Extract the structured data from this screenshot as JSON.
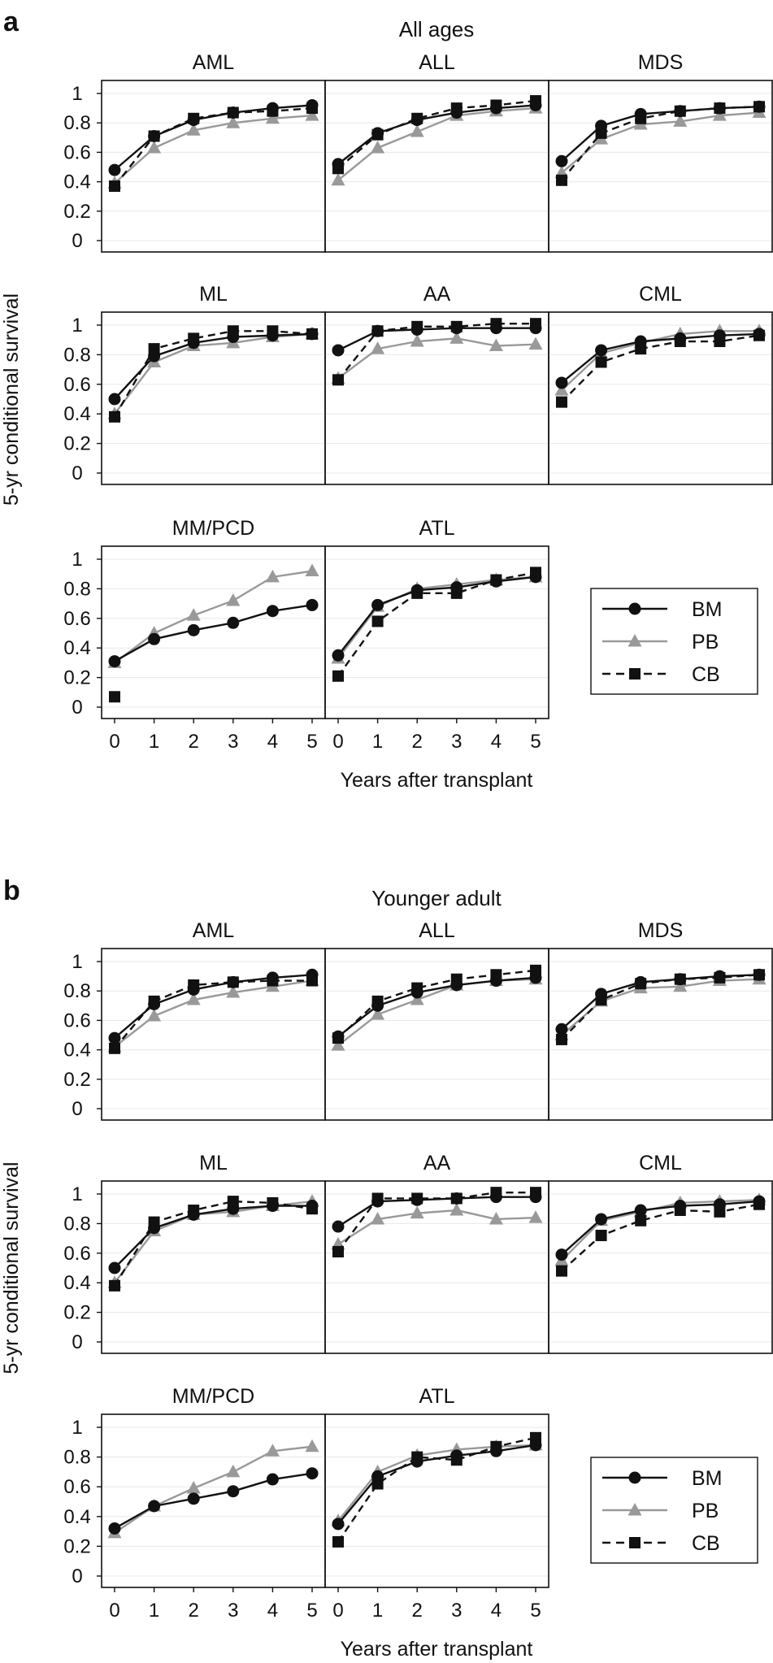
{
  "chart_data": [
    {
      "type": "line",
      "panel_label": "a",
      "title": "All ages",
      "xlabel": "Years after transplant",
      "ylabel": "5-yr conditional survival",
      "x": [
        0,
        1,
        2,
        3,
        4,
        5
      ],
      "x_ticks": [
        "0",
        "1",
        "2",
        "3",
        "4",
        "5"
      ],
      "y_ticks": [
        "0",
        "0.2",
        "0.4",
        "0.6",
        "0.8",
        "1"
      ],
      "ylim": [
        0,
        1
      ],
      "grid": true,
      "legend": {
        "position": "bottom-right",
        "entries": [
          {
            "name": "BM",
            "color": "#111111",
            "marker": "circle",
            "dash": "solid"
          },
          {
            "name": "PB",
            "color": "#999999",
            "marker": "triangle",
            "dash": "solid"
          },
          {
            "name": "CB",
            "color": "#111111",
            "marker": "square",
            "dash": "dashed"
          }
        ]
      },
      "subplots": [
        {
          "title": "AML",
          "series": [
            {
              "name": "BM",
              "values": [
                0.48,
                0.71,
                0.82,
                0.87,
                0.9,
                0.92
              ]
            },
            {
              "name": "PB",
              "values": [
                0.39,
                0.63,
                0.75,
                0.8,
                0.83,
                0.85
              ]
            },
            {
              "name": "CB",
              "values": [
                0.37,
                0.71,
                0.83,
                0.87,
                0.88,
                0.9
              ]
            }
          ]
        },
        {
          "title": "ALL",
          "series": [
            {
              "name": "BM",
              "values": [
                0.52,
                0.73,
                0.82,
                0.87,
                0.9,
                0.92
              ]
            },
            {
              "name": "PB",
              "values": [
                0.41,
                0.63,
                0.74,
                0.85,
                0.88,
                0.9
              ]
            },
            {
              "name": "CB",
              "values": [
                0.49,
                0.72,
                0.83,
                0.9,
                0.92,
                0.95
              ]
            }
          ]
        },
        {
          "title": "MDS",
          "series": [
            {
              "name": "BM",
              "values": [
                0.54,
                0.78,
                0.86,
                0.88,
                0.9,
                0.91
              ]
            },
            {
              "name": "PB",
              "values": [
                0.46,
                0.69,
                0.79,
                0.81,
                0.85,
                0.87
              ]
            },
            {
              "name": "CB",
              "values": [
                0.41,
                0.73,
                0.83,
                0.88,
                0.9,
                0.91
              ]
            }
          ]
        },
        {
          "title": "ML",
          "series": [
            {
              "name": "BM",
              "values": [
                0.5,
                0.79,
                0.88,
                0.92,
                0.93,
                0.94
              ]
            },
            {
              "name": "PB",
              "values": [
                0.4,
                0.75,
                0.86,
                0.88,
                0.92,
                0.94
              ]
            },
            {
              "name": "CB",
              "values": [
                0.38,
                0.84,
                0.91,
                0.96,
                0.96,
                0.94
              ]
            }
          ]
        },
        {
          "title": "AA",
          "series": [
            {
              "name": "BM",
              "values": [
                0.83,
                0.96,
                0.97,
                0.98,
                0.98,
                0.98
              ]
            },
            {
              "name": "PB",
              "values": [
                0.64,
                0.84,
                0.89,
                0.91,
                0.86,
                0.87
              ]
            },
            {
              "name": "CB",
              "values": [
                0.63,
                0.96,
                0.99,
                0.99,
                1.01,
                1.01
              ]
            }
          ]
        },
        {
          "title": "CML",
          "series": [
            {
              "name": "BM",
              "values": [
                0.61,
                0.83,
                0.89,
                0.91,
                0.93,
                0.94
              ]
            },
            {
              "name": "PB",
              "values": [
                0.56,
                0.81,
                0.88,
                0.94,
                0.96,
                0.96
              ]
            },
            {
              "name": "CB",
              "values": [
                0.48,
                0.75,
                0.84,
                0.89,
                0.89,
                0.93
              ]
            }
          ]
        },
        {
          "title": "MM/PCD",
          "series": [
            {
              "name": "BM",
              "values": [
                0.31,
                0.46,
                0.52,
                0.57,
                0.65,
                0.69
              ]
            },
            {
              "name": "PB",
              "values": [
                0.3,
                0.5,
                0.62,
                0.72,
                0.88,
                0.92
              ]
            },
            {
              "name": "CB",
              "values": [
                0.07,
                null,
                null,
                null,
                null,
                null
              ]
            }
          ]
        },
        {
          "title": "ATL",
          "series": [
            {
              "name": "BM",
              "values": [
                0.35,
                0.69,
                0.79,
                0.81,
                0.85,
                0.88
              ]
            },
            {
              "name": "PB",
              "values": [
                0.33,
                0.68,
                0.8,
                0.83,
                0.86,
                0.88
              ]
            },
            {
              "name": "CB",
              "values": [
                0.21,
                0.58,
                0.77,
                0.77,
                0.86,
                0.91
              ]
            }
          ]
        }
      ]
    },
    {
      "type": "line",
      "panel_label": "b",
      "title": "Younger adult",
      "xlabel": "Years after transplant",
      "ylabel": "5-yr conditional survival",
      "x": [
        0,
        1,
        2,
        3,
        4,
        5
      ],
      "x_ticks": [
        "0",
        "1",
        "2",
        "3",
        "4",
        "5"
      ],
      "y_ticks": [
        "0",
        "0.2",
        "0.4",
        "0.6",
        "0.8",
        "1"
      ],
      "ylim": [
        0,
        1
      ],
      "grid": true,
      "legend": {
        "position": "bottom-right",
        "entries": [
          {
            "name": "BM",
            "color": "#111111",
            "marker": "circle",
            "dash": "solid"
          },
          {
            "name": "PB",
            "color": "#999999",
            "marker": "triangle",
            "dash": "solid"
          },
          {
            "name": "CB",
            "color": "#111111",
            "marker": "square",
            "dash": "dashed"
          }
        ]
      },
      "subplots": [
        {
          "title": "AML",
          "series": [
            {
              "name": "BM",
              "values": [
                0.48,
                0.71,
                0.81,
                0.86,
                0.89,
                0.91
              ]
            },
            {
              "name": "PB",
              "values": [
                0.42,
                0.63,
                0.74,
                0.79,
                0.83,
                0.87
              ]
            },
            {
              "name": "CB",
              "values": [
                0.41,
                0.73,
                0.84,
                0.86,
                0.87,
                0.87
              ]
            }
          ]
        },
        {
          "title": "ALL",
          "series": [
            {
              "name": "BM",
              "values": [
                0.49,
                0.7,
                0.79,
                0.84,
                0.87,
                0.89
              ]
            },
            {
              "name": "PB",
              "values": [
                0.43,
                0.64,
                0.74,
                0.84,
                0.87,
                0.88
              ]
            },
            {
              "name": "CB",
              "values": [
                0.48,
                0.73,
                0.82,
                0.88,
                0.91,
                0.94
              ]
            }
          ]
        },
        {
          "title": "MDS",
          "series": [
            {
              "name": "BM",
              "values": [
                0.54,
                0.78,
                0.86,
                0.88,
                0.9,
                0.91
              ]
            },
            {
              "name": "PB",
              "values": [
                0.5,
                0.73,
                0.82,
                0.83,
                0.87,
                0.88
              ]
            },
            {
              "name": "CB",
              "values": [
                0.47,
                0.74,
                0.85,
                0.88,
                0.89,
                0.91
              ]
            }
          ]
        },
        {
          "title": "ML",
          "series": [
            {
              "name": "BM",
              "values": [
                0.5,
                0.77,
                0.86,
                0.9,
                0.92,
                0.92
              ]
            },
            {
              "name": "PB",
              "values": [
                0.4,
                0.75,
                0.86,
                0.88,
                0.92,
                0.95
              ]
            },
            {
              "name": "CB",
              "values": [
                0.38,
                0.81,
                0.89,
                0.95,
                0.94,
                0.9
              ]
            }
          ]
        },
        {
          "title": "AA",
          "series": [
            {
              "name": "BM",
              "values": [
                0.78,
                0.95,
                0.96,
                0.97,
                0.98,
                0.98
              ]
            },
            {
              "name": "PB",
              "values": [
                0.66,
                0.83,
                0.87,
                0.89,
                0.83,
                0.84
              ]
            },
            {
              "name": "CB",
              "values": [
                0.61,
                0.97,
                0.97,
                0.97,
                1.01,
                1.01
              ]
            }
          ]
        },
        {
          "title": "CML",
          "series": [
            {
              "name": "BM",
              "values": [
                0.59,
                0.83,
                0.89,
                0.92,
                0.93,
                0.95
              ]
            },
            {
              "name": "PB",
              "values": [
                0.55,
                0.82,
                0.88,
                0.94,
                0.95,
                0.96
              ]
            },
            {
              "name": "CB",
              "values": [
                0.48,
                0.72,
                0.82,
                0.89,
                0.88,
                0.93
              ]
            }
          ]
        },
        {
          "title": "MM/PCD",
          "series": [
            {
              "name": "BM",
              "values": [
                0.32,
                0.47,
                0.52,
                0.57,
                0.65,
                0.69
              ]
            },
            {
              "name": "PB",
              "values": [
                0.29,
                0.47,
                0.59,
                0.7,
                0.84,
                0.87
              ]
            },
            {
              "name": "CB",
              "values": [
                null,
                null,
                null,
                null,
                null,
                null
              ]
            }
          ]
        },
        {
          "title": "ATL",
          "series": [
            {
              "name": "BM",
              "values": [
                0.35,
                0.67,
                0.77,
                0.81,
                0.84,
                0.88
              ]
            },
            {
              "name": "PB",
              "values": [
                0.37,
                0.7,
                0.81,
                0.85,
                0.87,
                0.88
              ]
            },
            {
              "name": "CB",
              "values": [
                0.23,
                0.62,
                0.8,
                0.78,
                0.87,
                0.93
              ]
            }
          ]
        }
      ]
    }
  ]
}
